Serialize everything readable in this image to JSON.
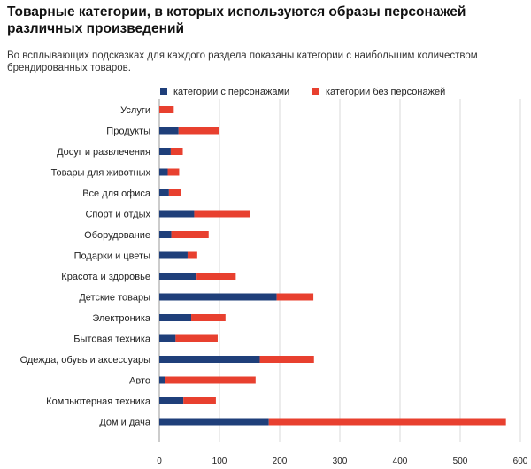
{
  "header": {
    "title": "Товарные категории, в которых используются образы персонажей различных произведений",
    "subtitle": "Во всплывающих подсказках для каждого раздела показаны категории с наибольшим количеством брендированных товаров."
  },
  "colors": {
    "with_characters": "#1f3f7a",
    "without_characters": "#e8402f",
    "grid": "#d9d9d9"
  },
  "chart_data": {
    "type": "bar",
    "orientation": "horizontal",
    "stacked": true,
    "title": "Товарные категории, в которых используются образы персонажей различных произведений",
    "categories": [
      "Услуги",
      "Продукты",
      "Досуг и развлечения",
      "Товары для животных",
      "Все для офиса",
      "Спорт и отдых",
      "Оборудование",
      "Подарки и цветы",
      "Красота и здоровье",
      "Детские товары",
      "Электроника",
      "Бытовая техника",
      "Одежда, обувь и аксессуары",
      "Авто",
      "Компьютерная техника",
      "Дом и дача"
    ],
    "series": [
      {
        "name": "категории с персонажами",
        "color": "#1f3f7a",
        "values": [
          0,
          32,
          19,
          14,
          16,
          58,
          20,
          47,
          62,
          195,
          53,
          27,
          167,
          10,
          40,
          182
        ]
      },
      {
        "name": "категории без персонажей",
        "color": "#e8402f",
        "values": [
          24,
          68,
          20,
          19,
          20,
          93,
          62,
          16,
          65,
          61,
          57,
          70,
          90,
          150,
          54,
          394
        ]
      }
    ],
    "x_ticks": [
      "0",
      "100",
      "200",
      "300",
      "400",
      "500",
      "600"
    ],
    "xlim": [
      0,
      600
    ],
    "grid": true,
    "legend_position": "top"
  }
}
